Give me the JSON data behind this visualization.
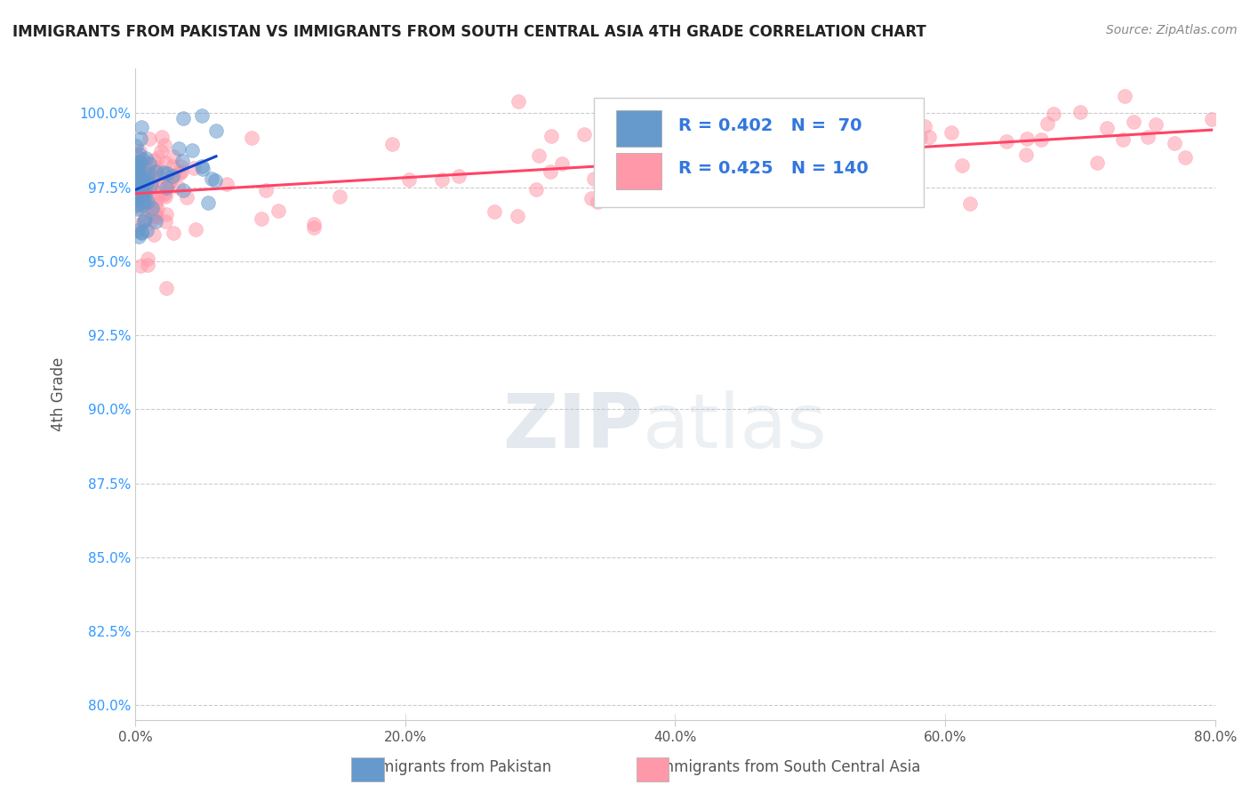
{
  "title": "IMMIGRANTS FROM PAKISTAN VS IMMIGRANTS FROM SOUTH CENTRAL ASIA 4TH GRADE CORRELATION CHART",
  "source": "Source: ZipAtlas.com",
  "ylabel_label": "4th Grade",
  "xlim": [
    0.0,
    80.0
  ],
  "ylim": [
    79.5,
    101.5
  ],
  "legend_blue_R": "0.402",
  "legend_blue_N": "70",
  "legend_pink_R": "0.425",
  "legend_pink_N": "140",
  "blue_color": "#6699CC",
  "pink_color": "#FF99AA",
  "blue_trend_color": "#1144CC",
  "pink_trend_color": "#FF4466",
  "watermark_zip": "ZIP",
  "watermark_atlas": "atlas",
  "ytick_vals": [
    80.0,
    82.5,
    85.0,
    87.5,
    90.0,
    92.5,
    95.0,
    97.5,
    100.0
  ],
  "ytick_labels": [
    "80.0%",
    "82.5%",
    "85.0%",
    "87.5%",
    "90.0%",
    "92.5%",
    "95.0%",
    "97.5%",
    "100.0%"
  ],
  "xtick_vals": [
    0,
    20,
    40,
    60,
    80
  ],
  "xtick_labels": [
    "0.0%",
    "20.0%",
    "40.0%",
    "60.0%",
    "80.0%"
  ]
}
